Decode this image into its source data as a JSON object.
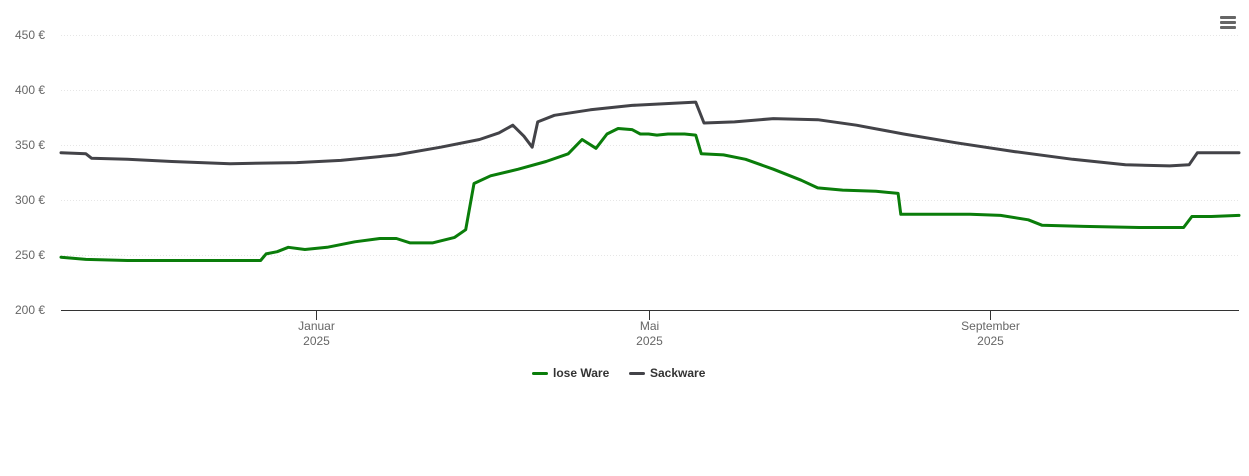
{
  "chart_data": {
    "type": "line",
    "title": "",
    "xlabel": "",
    "ylabel": "",
    "y_axis": {
      "min": 200,
      "max": 450,
      "step": 50,
      "unit_suffix": " €",
      "ticks": [
        "200 €",
        "250 €",
        "300 €",
        "350 €",
        "400 €",
        "450 €"
      ]
    },
    "x_axis": {
      "range": [
        "2024-10-01",
        "2025-11-30"
      ],
      "ticks": [
        {
          "date": "2025-01-01",
          "label": "Januar",
          "year": "2025"
        },
        {
          "date": "2025-05-01",
          "label": "Mai",
          "year": "2025"
        },
        {
          "date": "2025-09-01",
          "label": "September",
          "year": "2025"
        }
      ]
    },
    "grid": true,
    "legend_position": "bottom-center",
    "series": [
      {
        "name": "lose Ware",
        "color": "#0a7d0a",
        "points": [
          [
            "2024-10-01",
            248
          ],
          [
            "2024-10-10",
            246
          ],
          [
            "2024-10-25",
            245
          ],
          [
            "2024-11-15",
            245
          ],
          [
            "2024-12-05",
            245
          ],
          [
            "2024-12-12",
            245
          ],
          [
            "2024-12-14",
            251
          ],
          [
            "2024-12-18",
            253
          ],
          [
            "2024-12-22",
            257
          ],
          [
            "2024-12-28",
            255
          ],
          [
            "2025-01-05",
            257
          ],
          [
            "2025-01-15",
            262
          ],
          [
            "2025-01-24",
            265
          ],
          [
            "2025-01-30",
            265
          ],
          [
            "2025-02-04",
            261
          ],
          [
            "2025-02-12",
            261
          ],
          [
            "2025-02-20",
            266
          ],
          [
            "2025-02-24",
            273
          ],
          [
            "2025-02-27",
            315
          ],
          [
            "2025-03-05",
            322
          ],
          [
            "2025-03-15",
            328
          ],
          [
            "2025-03-25",
            335
          ],
          [
            "2025-04-02",
            342
          ],
          [
            "2025-04-07",
            355
          ],
          [
            "2025-04-12",
            347
          ],
          [
            "2025-04-16",
            360
          ],
          [
            "2025-04-20",
            365
          ],
          [
            "2025-04-25",
            364
          ],
          [
            "2025-04-28",
            360
          ],
          [
            "2025-05-01",
            360
          ],
          [
            "2025-05-04",
            359
          ],
          [
            "2025-05-08",
            360
          ],
          [
            "2025-05-14",
            360
          ],
          [
            "2025-05-18",
            359
          ],
          [
            "2025-05-20",
            342
          ],
          [
            "2025-05-28",
            341
          ],
          [
            "2025-06-05",
            337
          ],
          [
            "2025-06-15",
            328
          ],
          [
            "2025-06-25",
            318
          ],
          [
            "2025-07-01",
            311
          ],
          [
            "2025-07-10",
            309
          ],
          [
            "2025-07-22",
            308
          ],
          [
            "2025-07-30",
            306
          ],
          [
            "2025-07-31",
            287
          ],
          [
            "2025-08-10",
            287
          ],
          [
            "2025-08-25",
            287
          ],
          [
            "2025-09-05",
            286
          ],
          [
            "2025-09-15",
            282
          ],
          [
            "2025-09-20",
            277
          ],
          [
            "2025-10-05",
            276
          ],
          [
            "2025-10-25",
            275
          ],
          [
            "2025-11-10",
            275
          ],
          [
            "2025-11-13",
            285
          ],
          [
            "2025-11-20",
            285
          ],
          [
            "2025-11-30",
            286
          ]
        ]
      },
      {
        "name": "Sackware",
        "color": "#434348",
        "points": [
          [
            "2024-10-01",
            343
          ],
          [
            "2024-10-10",
            342
          ],
          [
            "2024-10-12",
            338
          ],
          [
            "2024-10-25",
            337
          ],
          [
            "2024-11-10",
            335
          ],
          [
            "2024-12-01",
            333
          ],
          [
            "2024-12-25",
            334
          ],
          [
            "2025-01-10",
            336
          ],
          [
            "2025-01-30",
            341
          ],
          [
            "2025-02-15",
            348
          ],
          [
            "2025-03-01",
            355
          ],
          [
            "2025-03-08",
            361
          ],
          [
            "2025-03-13",
            368
          ],
          [
            "2025-03-17",
            358
          ],
          [
            "2025-03-20",
            348
          ],
          [
            "2025-03-22",
            371
          ],
          [
            "2025-03-28",
            377
          ],
          [
            "2025-04-10",
            382
          ],
          [
            "2025-04-25",
            386
          ],
          [
            "2025-05-10",
            388
          ],
          [
            "2025-05-18",
            389
          ],
          [
            "2025-05-21",
            370
          ],
          [
            "2025-06-01",
            371
          ],
          [
            "2025-06-15",
            374
          ],
          [
            "2025-07-01",
            373
          ],
          [
            "2025-07-15",
            368
          ],
          [
            "2025-08-01",
            360
          ],
          [
            "2025-08-20",
            352
          ],
          [
            "2025-09-10",
            344
          ],
          [
            "2025-10-01",
            337
          ],
          [
            "2025-10-20",
            332
          ],
          [
            "2025-11-05",
            331
          ],
          [
            "2025-11-12",
            332
          ],
          [
            "2025-11-15",
            343
          ],
          [
            "2025-11-30",
            343
          ]
        ]
      }
    ]
  },
  "legend": [
    {
      "label": "lose Ware",
      "color": "#0a7d0a"
    },
    {
      "label": "Sackware",
      "color": "#434348"
    }
  ],
  "menu": {
    "icon": "hamburger-menu-icon"
  }
}
